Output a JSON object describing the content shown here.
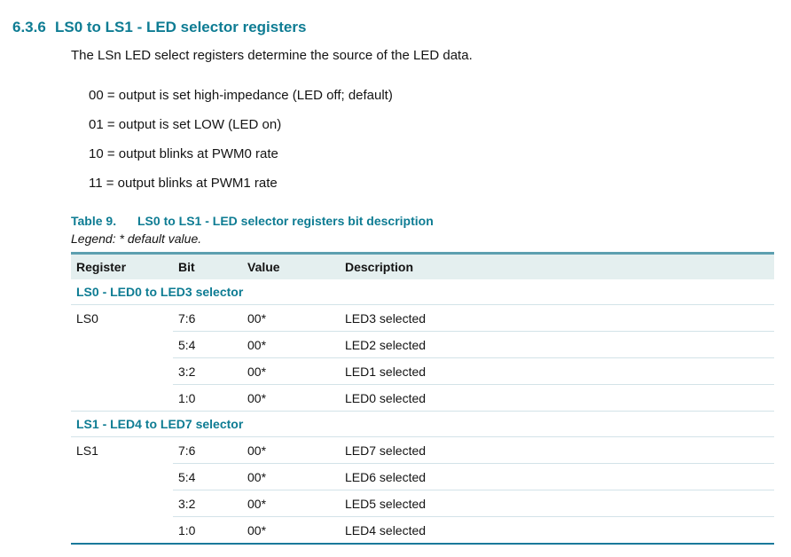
{
  "page": {
    "section_number": "6.3.6",
    "section_title": "LS0 to LS1 - LED selector registers",
    "intro": "The LSn LED select registers determine the source of the LED data.",
    "value_list": [
      "00 = output is set high-impedance (LED off; default)",
      "01 = output is set LOW (LED on)",
      "10 = output blinks at PWM0 rate",
      "11 = output blinks at PWM1 rate"
    ]
  },
  "table": {
    "label": "Table 9.",
    "title": "LS0 to LS1 - LED selector registers bit description",
    "legend": "Legend: * default value.",
    "columns": [
      "Register",
      "Bit",
      "Value",
      "Description"
    ],
    "groups": [
      {
        "section": "LS0 - LED0 to LED3 selector",
        "register": "LS0",
        "rows": [
          {
            "bit": "7:6",
            "value": "00*",
            "description": "LED3 selected"
          },
          {
            "bit": "5:4",
            "value": "00*",
            "description": "LED2 selected"
          },
          {
            "bit": "3:2",
            "value": "00*",
            "description": "LED1 selected"
          },
          {
            "bit": "1:0",
            "value": "00*",
            "description": "LED0 selected"
          }
        ]
      },
      {
        "section": "LS1 - LED4 to LED7 selector",
        "register": "LS1",
        "rows": [
          {
            "bit": "7:6",
            "value": "00*",
            "description": "LED7 selected"
          },
          {
            "bit": "5:4",
            "value": "00*",
            "description": "LED6 selected"
          },
          {
            "bit": "3:2",
            "value": "00*",
            "description": "LED5 selected"
          },
          {
            "bit": "1:0",
            "value": "00*",
            "description": "LED4 selected"
          }
        ]
      }
    ]
  },
  "colors": {
    "accent_teal": "#0e7c93",
    "table_top_border": "#5d9fb0",
    "table_bottom_border": "#19799b",
    "header_bg": "#e4efef",
    "row_divider": "#d3e3e8",
    "text": "#141414"
  }
}
